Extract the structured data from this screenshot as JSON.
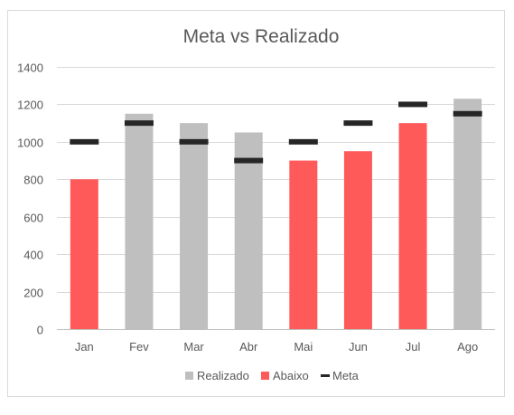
{
  "chart_data": {
    "type": "bar",
    "title": "Meta vs Realizado",
    "xlabel": "",
    "ylabel": "",
    "categories": [
      "Jan",
      "Fev",
      "Mar",
      "Abr",
      "Mai",
      "Jun",
      "Jul",
      "Ago"
    ],
    "ylim": [
      0,
      1400
    ],
    "yticks": [
      "0",
      "200",
      "400",
      "600",
      "800",
      "1000",
      "1200",
      "1400"
    ],
    "grid": true,
    "legend_position": "bottom",
    "series": [
      {
        "name": "Realizado",
        "type": "bar",
        "color": "#bfbfbf",
        "values": [
          null,
          1150,
          1100,
          1050,
          null,
          null,
          null,
          1230
        ]
      },
      {
        "name": "Abaixo",
        "type": "bar",
        "color": "#ff5a5a",
        "values": [
          800,
          null,
          null,
          null,
          900,
          950,
          1100,
          null
        ]
      },
      {
        "name": "Meta",
        "type": "marker",
        "color": "#262626",
        "values": [
          1000,
          1100,
          1000,
          900,
          1000,
          1100,
          1200,
          1150
        ]
      }
    ]
  }
}
